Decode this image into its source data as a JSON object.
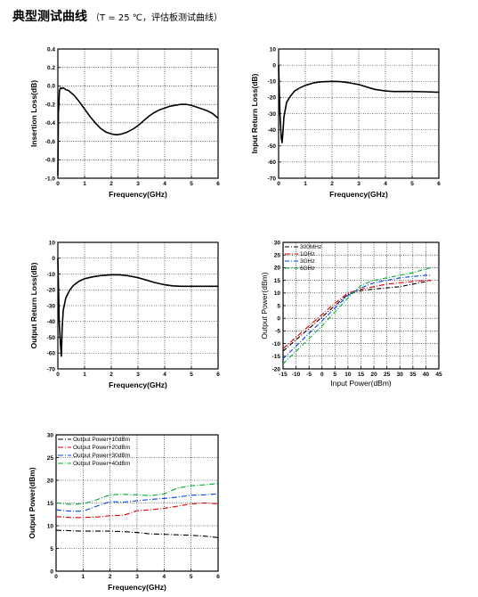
{
  "header": {
    "title": "典型测试曲线",
    "subtitle": "（T = 25 ℃，评估板测试曲线）"
  },
  "chart_data": [
    {
      "id": "insertion_loss",
      "type": "line",
      "xlabel": "Frequency(GHz)",
      "ylabel": "Insertion Loss(dB)",
      "xlim": [
        0,
        6
      ],
      "ylim": [
        -1.0,
        0.4
      ],
      "xticks": [
        "0",
        "1",
        "2",
        "3",
        "4",
        "5",
        "6"
      ],
      "yticks": [
        "-1.0",
        "-0.8",
        "-0.6",
        "-0.4",
        "-0.2",
        "0.0",
        "0.2",
        "0.4"
      ],
      "grid": true,
      "series": [
        {
          "color": "#000000",
          "dash": "",
          "x": [
            0,
            0.02,
            0.06,
            0.1,
            0.15,
            0.2,
            0.3,
            0.4,
            0.6,
            0.8,
            1.0,
            1.2,
            1.4,
            1.6,
            1.8,
            2.0,
            2.2,
            2.4,
            2.6,
            2.8,
            3.0,
            3.2,
            3.4,
            3.6,
            3.8,
            4.0,
            4.2,
            4.4,
            4.6,
            4.8,
            5.0,
            5.2,
            5.4,
            5.6,
            5.8,
            6.0
          ],
          "y": [
            -0.97,
            -0.3,
            -0.05,
            -0.02,
            -0.03,
            -0.02,
            -0.04,
            -0.05,
            -0.1,
            -0.17,
            -0.25,
            -0.33,
            -0.4,
            -0.46,
            -0.5,
            -0.52,
            -0.53,
            -0.52,
            -0.5,
            -0.47,
            -0.43,
            -0.38,
            -0.33,
            -0.29,
            -0.26,
            -0.24,
            -0.22,
            -0.21,
            -0.2,
            -0.2,
            -0.21,
            -0.23,
            -0.25,
            -0.27,
            -0.3,
            -0.35
          ]
        }
      ]
    },
    {
      "id": "input_return_loss",
      "type": "line",
      "xlabel": "Frequency(GHz)",
      "ylabel": "Input Return Loss(dB)",
      "xlim": [
        0,
        6
      ],
      "ylim": [
        -70,
        10
      ],
      "xticks": [
        "0",
        "1",
        "2",
        "3",
        "4",
        "5",
        "6"
      ],
      "yticks": [
        "-70",
        "-60",
        "-50",
        "-40",
        "-30",
        "-20",
        "-10",
        "0",
        "10"
      ],
      "grid": true,
      "series": [
        {
          "color": "#000000",
          "dash": "",
          "x": [
            0,
            0.05,
            0.1,
            0.13,
            0.16,
            0.2,
            0.3,
            0.45,
            0.6,
            0.8,
            1.0,
            1.3,
            1.6,
            2.0,
            2.3,
            2.6,
            3.0,
            3.3,
            3.6,
            4.0,
            4.3,
            4.6,
            5.0,
            5.5,
            6.0
          ],
          "y": [
            0,
            -30,
            -45,
            -48,
            -42,
            -32,
            -23,
            -19,
            -16,
            -14,
            -12.5,
            -11,
            -10.3,
            -10,
            -10.2,
            -10.8,
            -12,
            -13.5,
            -15,
            -16,
            -16.3,
            -16.3,
            -16.3,
            -16.5,
            -16.8
          ]
        }
      ]
    },
    {
      "id": "output_return_loss",
      "type": "line",
      "xlabel": "Frequency(GHz)",
      "ylabel": "Output Return Loss(dB)",
      "xlim": [
        0,
        6
      ],
      "ylim": [
        -70,
        10
      ],
      "xticks": [
        "0",
        "1",
        "2",
        "3",
        "4",
        "5",
        "6"
      ],
      "yticks": [
        "-70",
        "-60",
        "-50",
        "-40",
        "-30",
        "-20",
        "-10",
        "0",
        "10"
      ],
      "grid": true,
      "series": [
        {
          "color": "#000000",
          "dash": "",
          "x": [
            0,
            0.05,
            0.1,
            0.13,
            0.16,
            0.2,
            0.3,
            0.45,
            0.6,
            0.8,
            1.0,
            1.3,
            1.6,
            2.0,
            2.3,
            2.6,
            3.0,
            3.3,
            3.6,
            4.0,
            4.3,
            4.6,
            5.0,
            5.5,
            6.0
          ],
          "y": [
            0,
            -40,
            -55,
            -62,
            -45,
            -33,
            -25,
            -20,
            -17,
            -14.5,
            -13,
            -11.8,
            -11,
            -10.5,
            -10.5,
            -11,
            -12.3,
            -13.8,
            -15.3,
            -16.8,
            -17.5,
            -17.8,
            -17.8,
            -17.8,
            -17.8
          ]
        }
      ]
    },
    {
      "id": "power_transfer",
      "type": "line",
      "xlabel": "Input Power(dBm)",
      "ylabel": "Output Power(dBm)",
      "xlim": [
        -15,
        45
      ],
      "ylim": [
        -20,
        30
      ],
      "xticks": [
        "-15",
        "-10",
        "-5",
        "0",
        "5",
        "10",
        "15",
        "20",
        "25",
        "30",
        "35",
        "40",
        "45"
      ],
      "yticks": [
        "-20",
        "-15",
        "-10",
        "-5",
        "0",
        "5",
        "10",
        "15",
        "20",
        "25",
        "30"
      ],
      "grid": true,
      "legend": "top-left",
      "series": [
        {
          "name": "300MHz",
          "color": "#000000",
          "dash": "5,2,1,2",
          "x": [
            -15,
            -10,
            -5,
            0,
            5,
            10,
            15,
            20,
            25,
            30,
            35,
            40,
            42
          ],
          "y": [
            -13,
            -8.5,
            -4,
            0.5,
            5,
            9.5,
            11,
            11.5,
            12,
            12.5,
            13.5,
            14.5,
            15
          ]
        },
        {
          "name": "1GHz",
          "color": "#e00000",
          "dash": "6,2,1,2",
          "x": [
            -15,
            -10,
            -5,
            0,
            5,
            10,
            15,
            20,
            25,
            30,
            35,
            40,
            42
          ],
          "y": [
            -12,
            -7.5,
            -3,
            1.5,
            6,
            10,
            11.5,
            12.5,
            13.5,
            14,
            14.5,
            15,
            15
          ]
        },
        {
          "name": "3GHz",
          "color": "#0044ee",
          "dash": "5,2,1,2",
          "x": [
            -15,
            -10,
            -5,
            0,
            5,
            10,
            15,
            20,
            25,
            30,
            35,
            40,
            42
          ],
          "y": [
            -16,
            -11,
            -6,
            -1,
            4,
            9,
            12,
            14,
            15,
            16,
            16.5,
            17,
            17
          ]
        },
        {
          "name": "6GHz",
          "color": "#00aa33",
          "dash": "5,2,1,2",
          "x": [
            -15,
            -10,
            -5,
            0,
            5,
            10,
            15,
            20,
            25,
            30,
            35,
            40,
            42
          ],
          "y": [
            -18,
            -13,
            -8,
            -3,
            2.5,
            8,
            13,
            15,
            16,
            17,
            18,
            19.5,
            20
          ]
        }
      ]
    },
    {
      "id": "output_power_vs_freq",
      "type": "line",
      "xlabel": "Frequency(GHz)",
      "ylabel": "Output Power(dBm)",
      "xlim": [
        0,
        6
      ],
      "ylim": [
        0,
        30
      ],
      "xticks": [
        "0",
        "1",
        "2",
        "3",
        "4",
        "5",
        "6"
      ],
      "yticks": [
        "0",
        "5",
        "10",
        "15",
        "20",
        "25",
        "30"
      ],
      "grid": true,
      "legend": "top-left",
      "series": [
        {
          "name": "Output Power+10dBm",
          "color": "#000000",
          "dash": "6,2,1,2",
          "x": [
            0,
            0.5,
            1,
            1.5,
            2,
            2.5,
            3,
            3.5,
            4,
            4.5,
            5,
            5.5,
            6
          ],
          "y": [
            9,
            8.9,
            8.8,
            8.8,
            8.8,
            8.7,
            8.5,
            8.2,
            8.1,
            8,
            7.9,
            7.7,
            7.4
          ]
        },
        {
          "name": "Output Power+20dBm",
          "color": "#e00000",
          "dash": "6,2,1,2",
          "x": [
            0,
            0.5,
            1,
            1.5,
            2,
            2.5,
            3,
            3.5,
            4,
            4.5,
            5,
            5.5,
            6
          ],
          "y": [
            12,
            11.8,
            11.8,
            11.9,
            12.2,
            12.3,
            13.3,
            13.5,
            13.8,
            14.3,
            14.8,
            15,
            14.8
          ]
        },
        {
          "name": "Output Power+30dBm",
          "color": "#0044ee",
          "dash": "6,2,1,2",
          "x": [
            0,
            0.5,
            1,
            1.5,
            2,
            2.5,
            3,
            3.5,
            4,
            4.5,
            5,
            5.5,
            6
          ],
          "y": [
            13.5,
            13.2,
            13.2,
            14.3,
            15.3,
            15.2,
            15.5,
            15.8,
            16,
            16.3,
            16.7,
            16.8,
            17
          ]
        },
        {
          "name": "Output Power+40dBm",
          "color": "#00aa33",
          "dash": "6,2,1,2",
          "x": [
            0,
            0.5,
            1,
            1.5,
            2,
            2.5,
            3,
            3.5,
            4,
            4.5,
            5,
            5.5,
            6
          ],
          "y": [
            15,
            14.7,
            14.8,
            15.7,
            16.8,
            16.9,
            16.8,
            16.6,
            17,
            18.3,
            18.8,
            19,
            19.3
          ]
        }
      ]
    }
  ]
}
